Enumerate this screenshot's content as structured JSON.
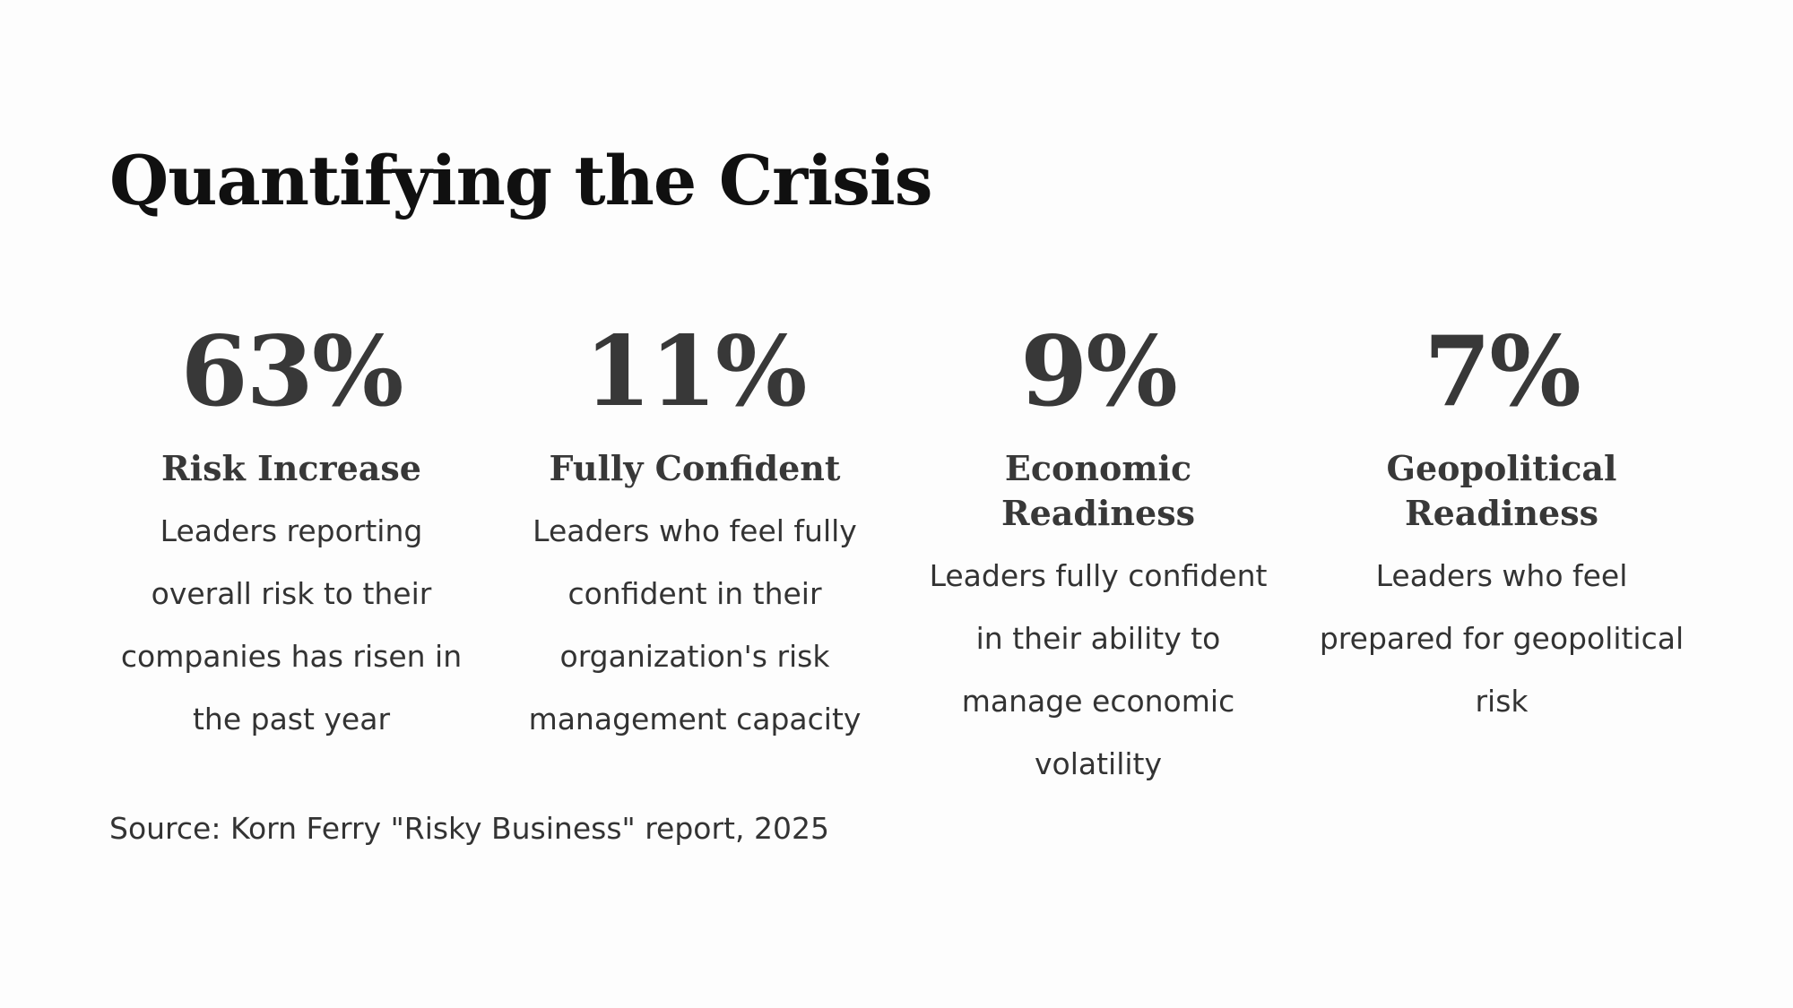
{
  "slide": {
    "title": "Quantifying the Crisis",
    "stats": [
      {
        "value": "63%",
        "label": "Risk Increase",
        "description": "Leaders reporting overall risk to their companies has risen in the past year"
      },
      {
        "value": "11%",
        "label": "Fully Confident",
        "description": "Leaders who feel fully confident in their organization's risk management capacity"
      },
      {
        "value": "9%",
        "label": "Economic Readiness",
        "description": "Leaders fully confident in their ability to manage economic volatility"
      },
      {
        "value": "7%",
        "label": "Geopolitical Readiness",
        "description": "Leaders who feel prepared for geopolitical risk"
      }
    ],
    "source": "Source: Korn Ferry \"Risky Business\" report, 2025"
  },
  "colors": {
    "background": "#fdfdfd",
    "title": "#101010",
    "stat_text": "#383838",
    "body_text": "#333333"
  }
}
